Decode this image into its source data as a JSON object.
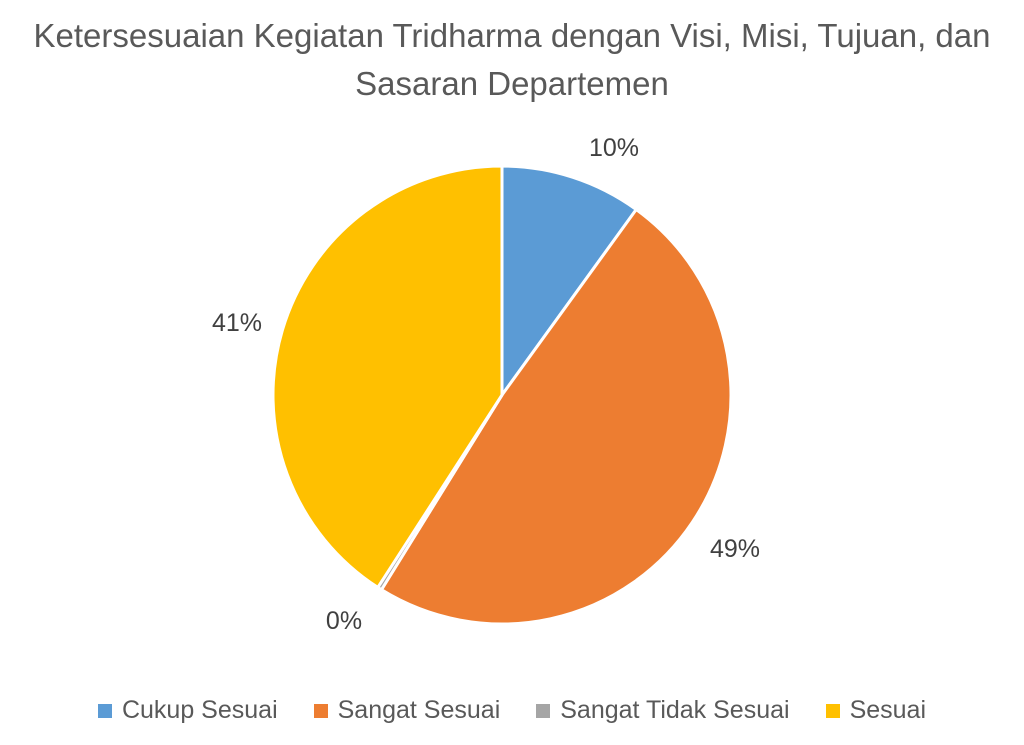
{
  "chart_data": {
    "type": "pie",
    "title_lines": [
      "Ketersesuaian Kegiatan Tridharma dengan Visi, Misi, Tujuan, dan",
      "Sasaran Departemen"
    ],
    "slices": [
      {
        "name": "Cukup Sesuai",
        "value": 10,
        "label": "10%",
        "color": "#5B9BD5"
      },
      {
        "name": "Sangat Sesuai",
        "value": 49,
        "label": "49%",
        "color": "#ED7D31"
      },
      {
        "name": "Sangat Tidak Sesuai",
        "value": 0.3,
        "label": "0%",
        "color": "#A5A5A5"
      },
      {
        "name": "Sesuai",
        "value": 41,
        "label": "41%",
        "color": "#FFC000"
      }
    ],
    "legend_position": "bottom"
  }
}
